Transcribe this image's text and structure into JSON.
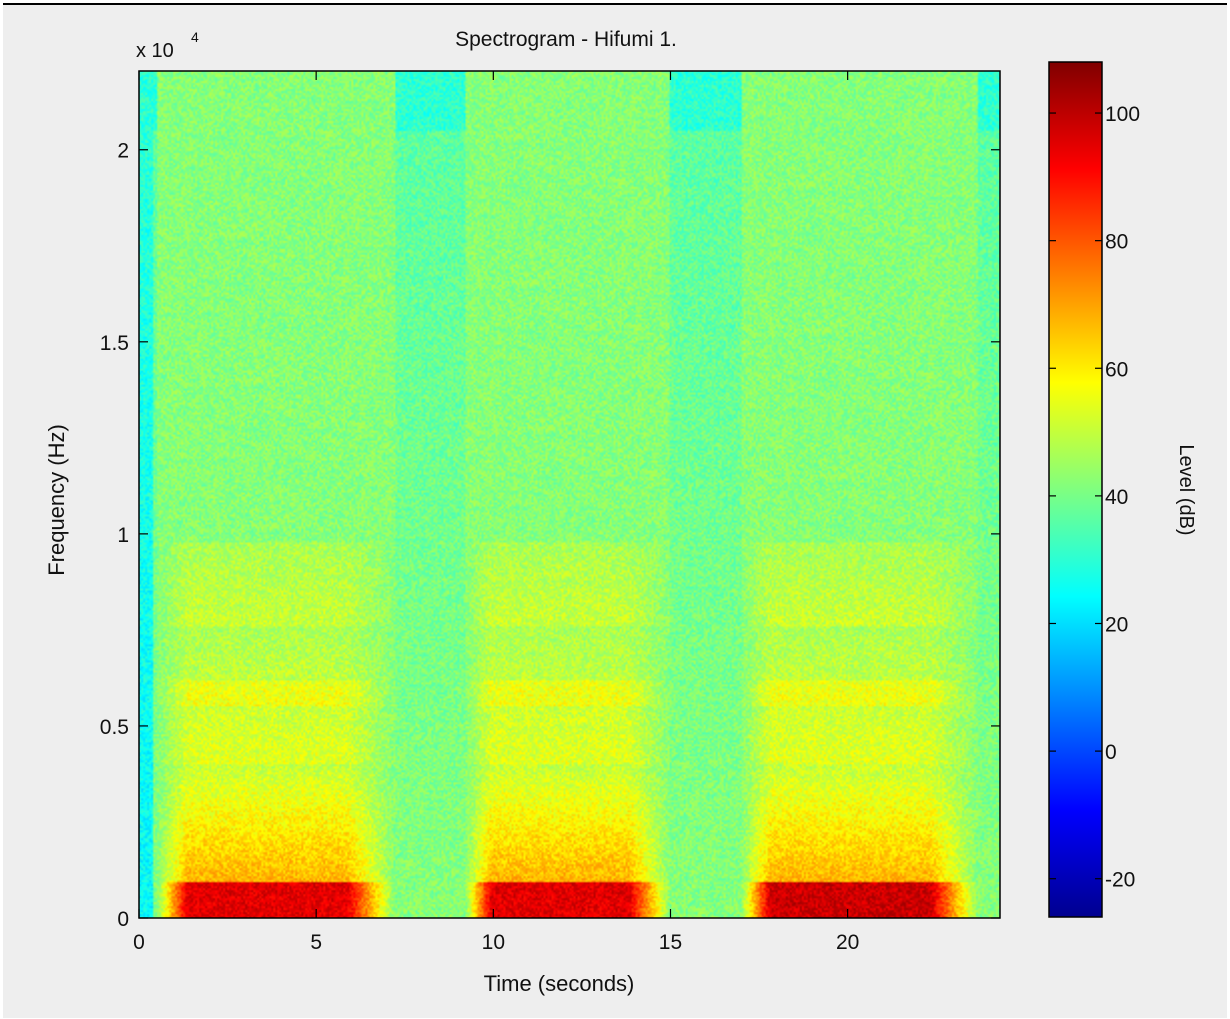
{
  "chart_data": {
    "type": "heatmap",
    "title": "Spectrogram - Hifumi 1.",
    "xlabel": "Time (seconds)",
    "ylabel": "Frequency (Hz)",
    "y_multiplier": "x 10",
    "y_multiplier_exponent": "4",
    "xlim": [
      0,
      24.3
    ],
    "ylim": [
      0,
      22050
    ],
    "x_ticks": [
      {
        "value": 0,
        "label": "0"
      },
      {
        "value": 5,
        "label": "5"
      },
      {
        "value": 10,
        "label": "10"
      },
      {
        "value": 15,
        "label": "15"
      },
      {
        "value": 20,
        "label": "20"
      }
    ],
    "y_ticks": [
      {
        "value": 0,
        "label": "0"
      },
      {
        "value": 5000,
        "label": "0.5"
      },
      {
        "value": 10000,
        "label": "1"
      },
      {
        "value": 15000,
        "label": "1.5"
      },
      {
        "value": 20000,
        "label": "2"
      }
    ],
    "colorbar": {
      "label": "Level (dB)",
      "colormap": "jet",
      "range": [
        -26,
        108
      ],
      "ticks": [
        {
          "value": 100,
          "label": "100"
        },
        {
          "value": 80,
          "label": "80"
        },
        {
          "value": 60,
          "label": "60"
        },
        {
          "value": 40,
          "label": "40"
        },
        {
          "value": 20,
          "label": "20"
        },
        {
          "value": 0,
          "label": "0"
        },
        {
          "value": -20,
          "label": "-20"
        }
      ]
    },
    "grid": false,
    "voiced_segments_seconds": [
      {
        "start": 0.5,
        "end": 7.2,
        "peak_level_db": 95
      },
      {
        "start": 9.2,
        "end": 15.0,
        "peak_level_db": 95
      },
      {
        "start": 17.0,
        "end": 23.7,
        "peak_level_db": 98
      }
    ],
    "background_level_db": 42
  }
}
